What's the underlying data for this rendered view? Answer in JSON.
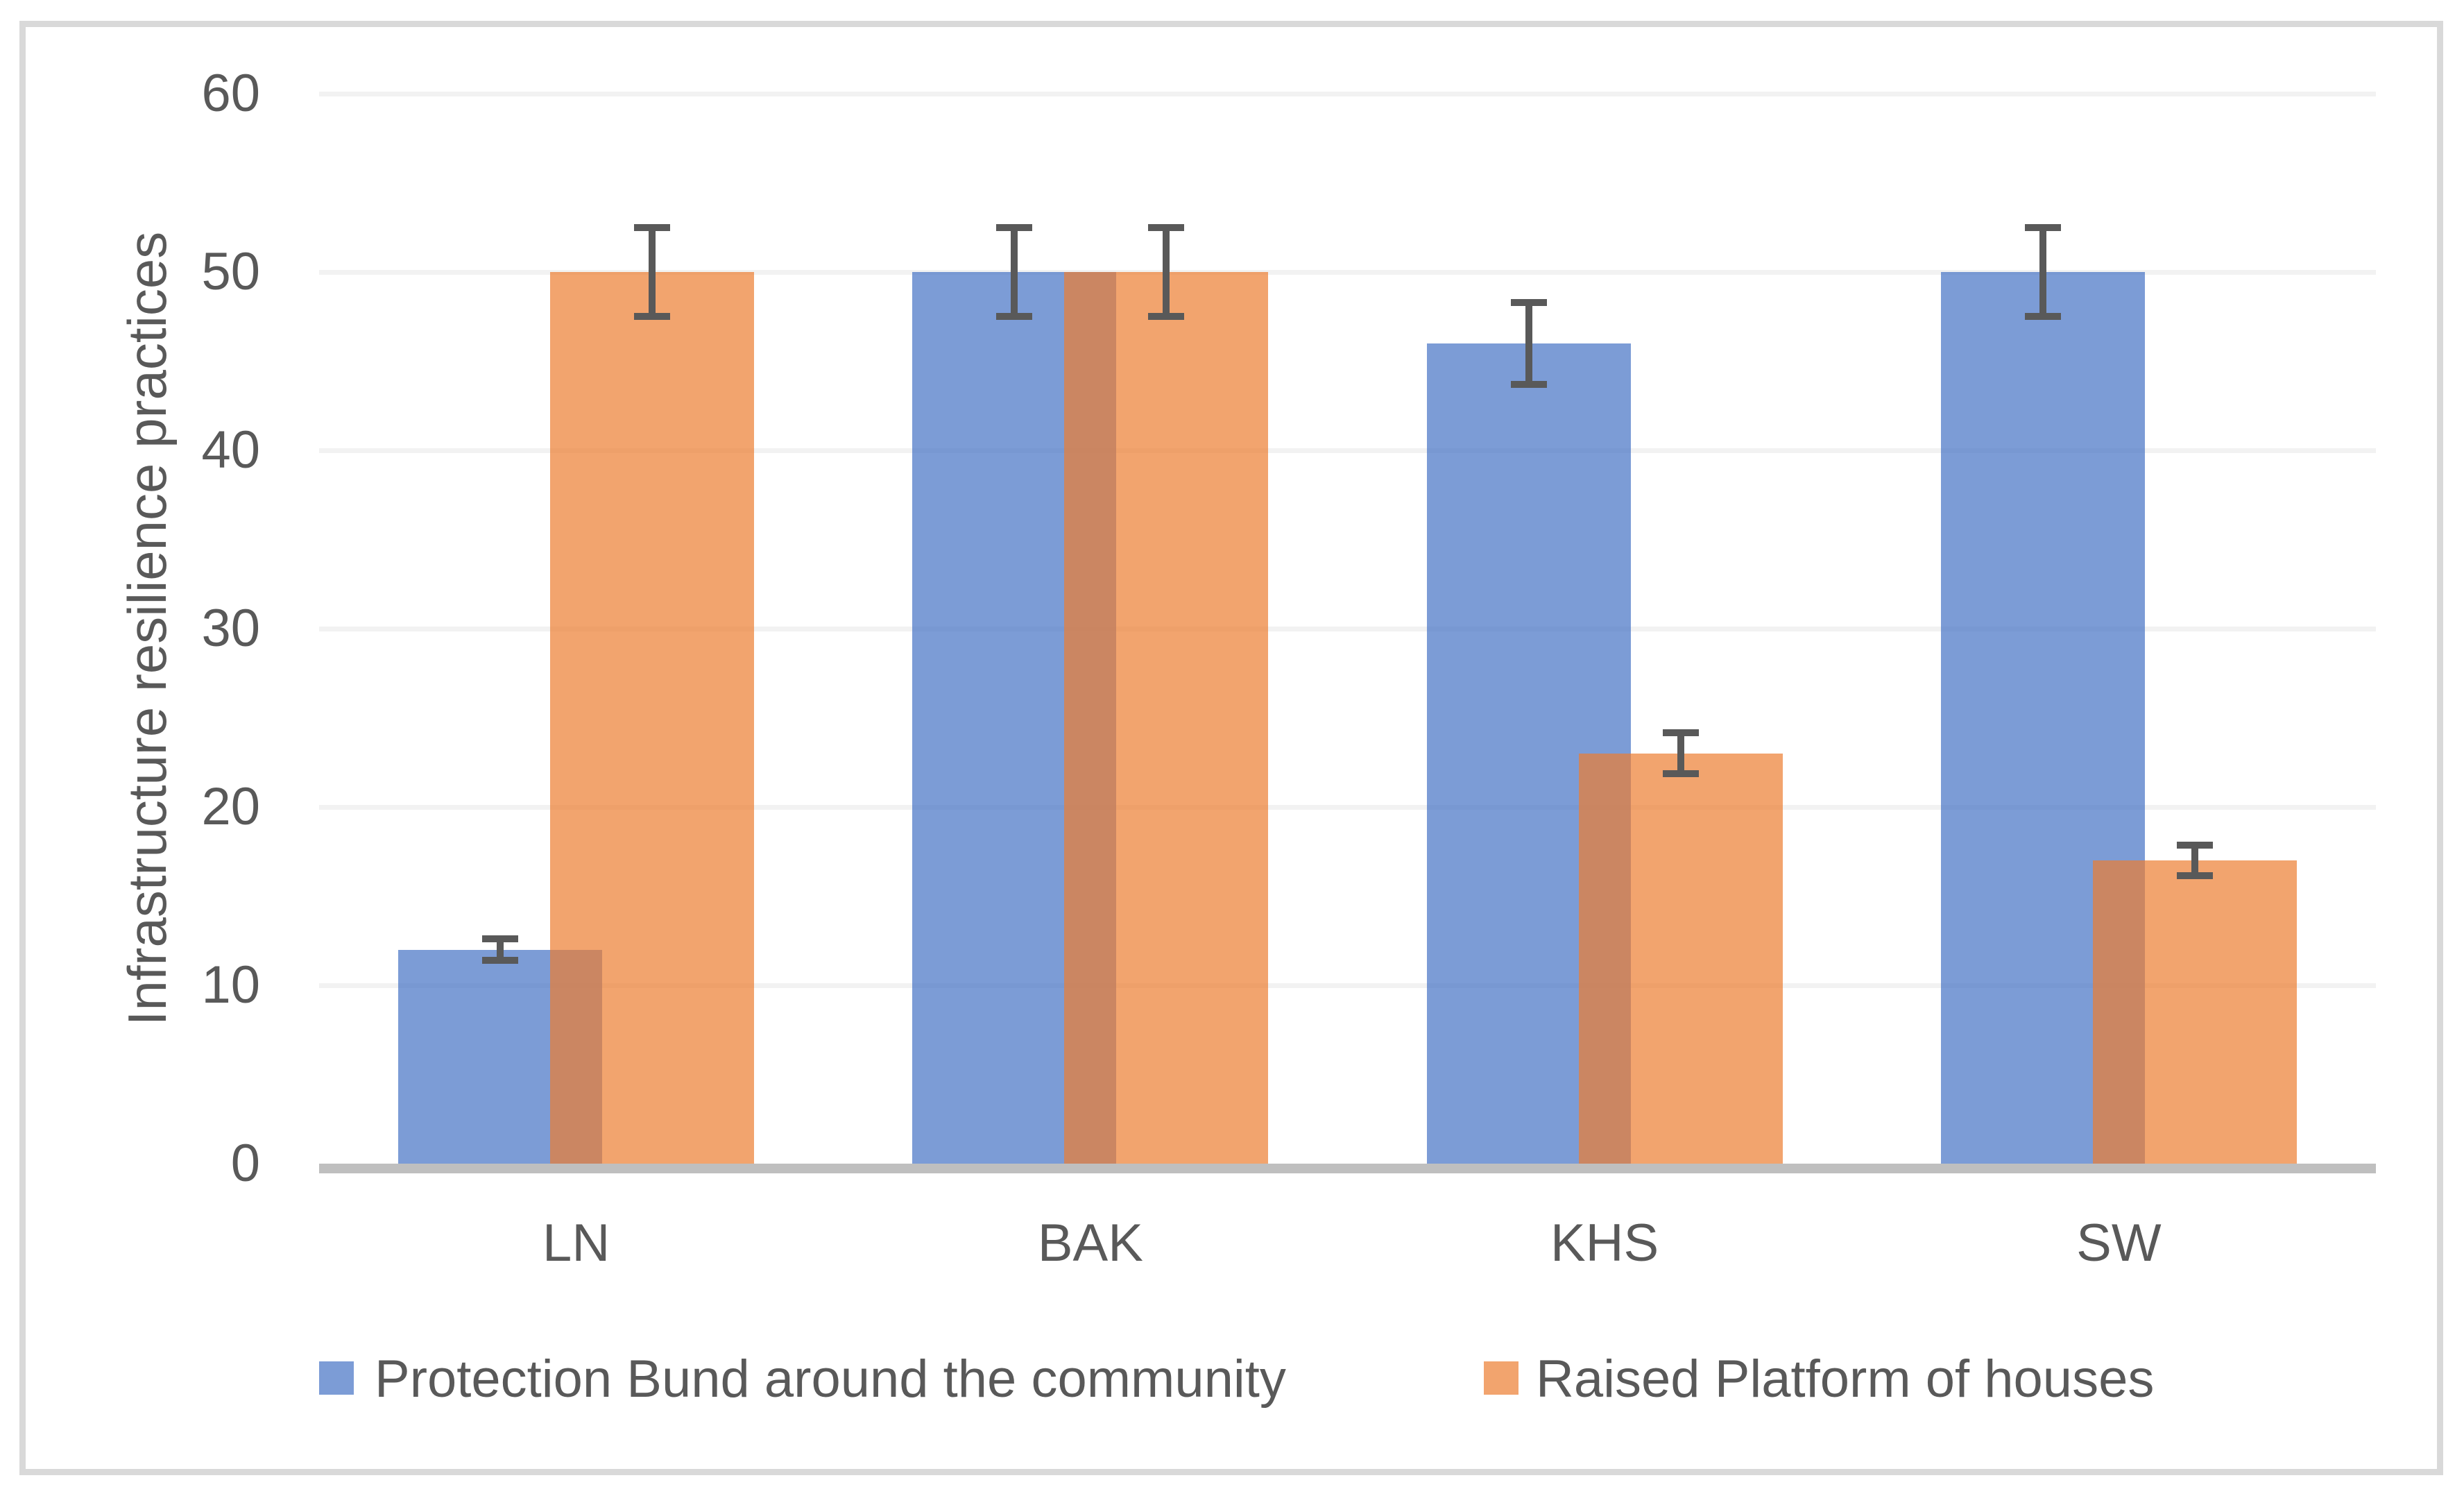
{
  "chart_data": {
    "type": "bar",
    "title": "",
    "categories": [
      "LN",
      "BAK",
      "KHS",
      "SW"
    ],
    "series": [
      {
        "name": "Protection Bund around the community",
        "color": "#4472C4",
        "fill_opacity": 0.7,
        "values": [
          12,
          50,
          46,
          50
        ],
        "error_bars": [
          0.6,
          2.5,
          2.3,
          2.5
        ]
      },
      {
        "name": "Raised Platform of houses",
        "color": "#ED7D31",
        "fill_opacity": 0.7,
        "values": [
          50,
          50,
          23,
          17
        ],
        "error_bars": [
          2.5,
          2.5,
          1.15,
          0.85
        ]
      }
    ],
    "xlabel": "",
    "ylabel": "Infrastructure resilience practices",
    "ylim": [
      0,
      60
    ],
    "yticks": [
      0,
      10,
      20,
      30,
      40,
      50,
      60
    ],
    "grid": true,
    "legend_position": "bottom",
    "colors": {
      "grid_line": "#F2F2F2",
      "axis_line": "#BFBFBF",
      "error_bar": "#595959",
      "text": "#595959",
      "chart_border": "#D9D9D9",
      "background": "#FFFFFF"
    }
  }
}
